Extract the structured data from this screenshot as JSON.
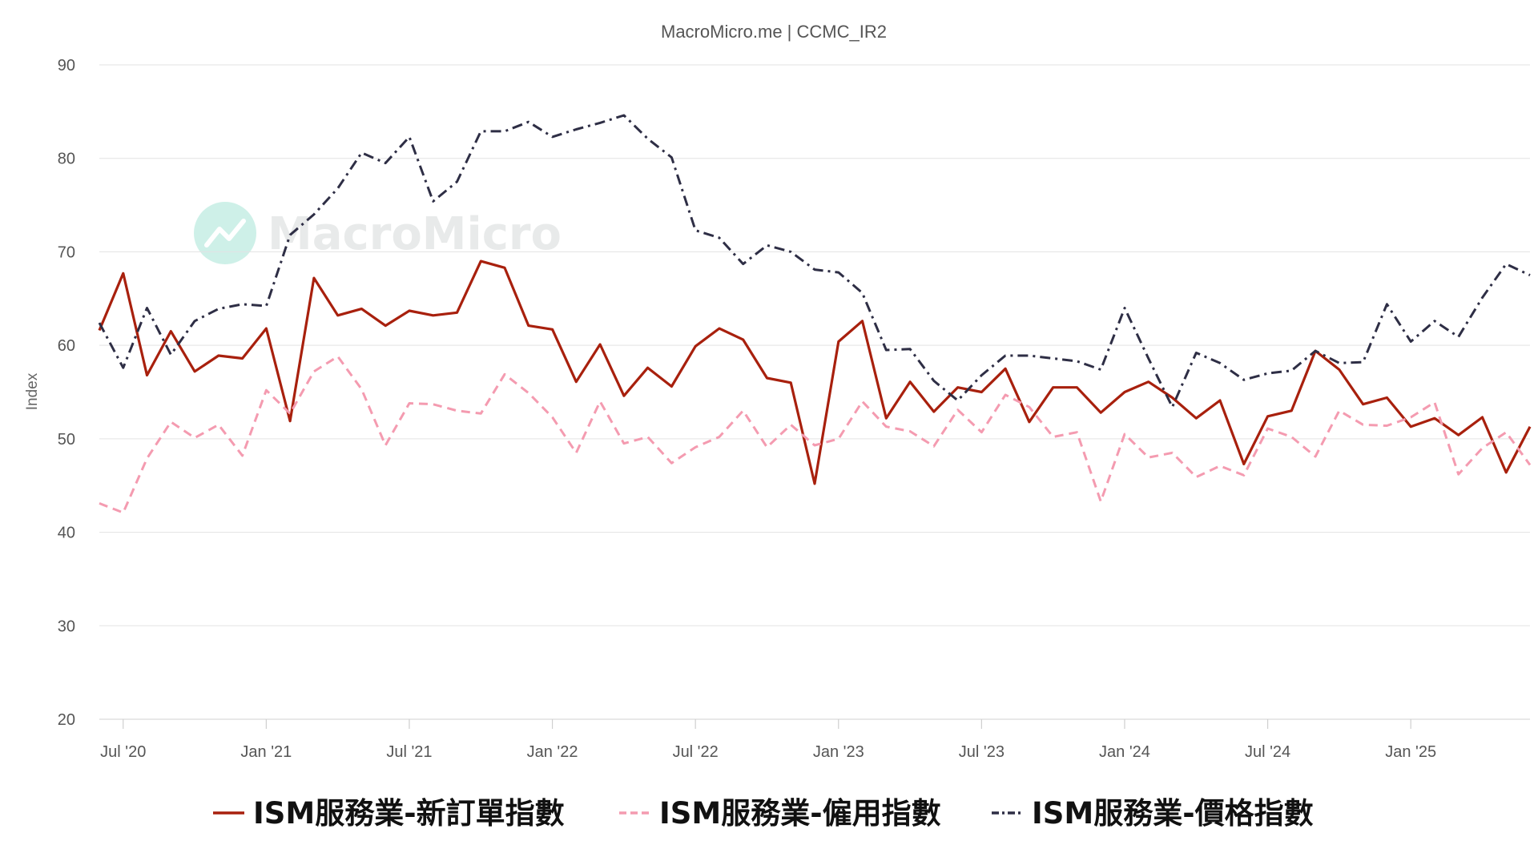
{
  "chart_data": {
    "type": "line",
    "title": "MacroMicro.me | CCMC_IR2",
    "ylabel": "Index",
    "xlabel": "",
    "ylim": [
      20,
      90
    ],
    "yticks": [
      20,
      30,
      40,
      50,
      60,
      70,
      80,
      90
    ],
    "x_range": [
      "2020-06",
      "2025-06"
    ],
    "x_tick_labels": [
      {
        "date": "2020-07",
        "label": "Jul '20"
      },
      {
        "date": "2021-01",
        "label": "Jan '21"
      },
      {
        "date": "2021-07",
        "label": "Jul '21"
      },
      {
        "date": "2022-01",
        "label": "Jan '22"
      },
      {
        "date": "2022-07",
        "label": "Jul '22"
      },
      {
        "date": "2023-01",
        "label": "Jan '23"
      },
      {
        "date": "2023-07",
        "label": "Jul '23"
      },
      {
        "date": "2024-01",
        "label": "Jan '24"
      },
      {
        "date": "2024-07",
        "label": "Jul '24"
      },
      {
        "date": "2025-01",
        "label": "Jan '25"
      }
    ],
    "grid": true,
    "legend_position": "bottom",
    "watermark": "MacroMicro",
    "x": [
      "2020-06",
      "2020-07",
      "2020-08",
      "2020-09",
      "2020-10",
      "2020-11",
      "2020-12",
      "2021-01",
      "2021-02",
      "2021-03",
      "2021-04",
      "2021-05",
      "2021-06",
      "2021-07",
      "2021-08",
      "2021-09",
      "2021-10",
      "2021-11",
      "2021-12",
      "2022-01",
      "2022-02",
      "2022-03",
      "2022-04",
      "2022-05",
      "2022-06",
      "2022-07",
      "2022-08",
      "2022-09",
      "2022-10",
      "2022-11",
      "2022-12",
      "2023-01",
      "2023-02",
      "2023-03",
      "2023-04",
      "2023-05",
      "2023-06",
      "2023-07",
      "2023-08",
      "2023-09",
      "2023-10",
      "2023-11",
      "2023-12",
      "2024-01",
      "2024-02",
      "2024-03",
      "2024-04",
      "2024-05",
      "2024-06",
      "2024-07",
      "2024-08",
      "2024-09",
      "2024-10",
      "2024-11",
      "2024-12",
      "2025-01",
      "2025-02",
      "2025-03",
      "2025-04",
      "2025-05",
      "2025-06"
    ],
    "series": [
      {
        "name": "ISM服務業-新訂單指數",
        "color": "#a8200d",
        "dash": "solid",
        "values": [
          61.6,
          67.7,
          56.8,
          61.5,
          57.2,
          58.9,
          58.6,
          61.8,
          51.9,
          67.2,
          63.2,
          63.9,
          62.1,
          63.7,
          63.2,
          63.5,
          69.0,
          68.3,
          62.1,
          61.7,
          56.1,
          60.1,
          54.6,
          57.6,
          55.6,
          59.9,
          61.8,
          60.6,
          56.5,
          56.0,
          45.2,
          60.4,
          62.6,
          52.2,
          56.1,
          52.9,
          55.5,
          55.0,
          57.5,
          51.8,
          55.5,
          55.5,
          52.8,
          55.0,
          56.1,
          54.4,
          52.2,
          54.1,
          47.3,
          52.4,
          53.0,
          59.4,
          57.4,
          53.7,
          54.4,
          51.3,
          52.2,
          50.4,
          52.3,
          46.4,
          51.3
        ]
      },
      {
        "name": "ISM服務業-僱用指數",
        "color": "#f49bb0",
        "dash": "dashed",
        "values": [
          43.1,
          42.1,
          47.9,
          51.8,
          50.1,
          51.5,
          48.2,
          55.2,
          52.7,
          57.2,
          58.8,
          55.3,
          49.3,
          53.8,
          53.7,
          53.0,
          52.7,
          56.9,
          54.9,
          52.3,
          48.5,
          54.0,
          49.5,
          50.2,
          47.4,
          49.1,
          50.2,
          53.0,
          49.1,
          51.5,
          49.3,
          50.0,
          54.0,
          51.3,
          50.8,
          49.2,
          53.1,
          50.7,
          54.7,
          53.4,
          50.2,
          50.7,
          43.3,
          50.5,
          48.0,
          48.5,
          45.9,
          47.1,
          46.1,
          51.1,
          50.2,
          48.1,
          53.0,
          51.5,
          51.4,
          52.3,
          53.9,
          46.2,
          49.0,
          50.7,
          47.2
        ]
      },
      {
        "name": "ISM服務業-價格指數",
        "color": "#2e2e45",
        "dash": "dashdot",
        "values": [
          62.4,
          57.6,
          64.0,
          59.0,
          62.6,
          63.9,
          64.4,
          64.2,
          71.8,
          74.0,
          76.8,
          80.6,
          79.5,
          82.3,
          75.4,
          77.5,
          82.9,
          82.9,
          83.9,
          82.3,
          83.1,
          83.8,
          84.6,
          82.1,
          80.1,
          72.3,
          71.5,
          68.7,
          70.7,
          70.0,
          68.1,
          67.8,
          65.6,
          59.5,
          59.6,
          56.2,
          54.1,
          56.8,
          58.9,
          58.9,
          58.6,
          58.3,
          57.4,
          64.0,
          58.6,
          53.4,
          59.2,
          58.1,
          56.3,
          57.0,
          57.3,
          59.4,
          58.1,
          58.2,
          64.4,
          60.4,
          62.6,
          60.9,
          65.1,
          68.7,
          67.5
        ]
      }
    ]
  }
}
